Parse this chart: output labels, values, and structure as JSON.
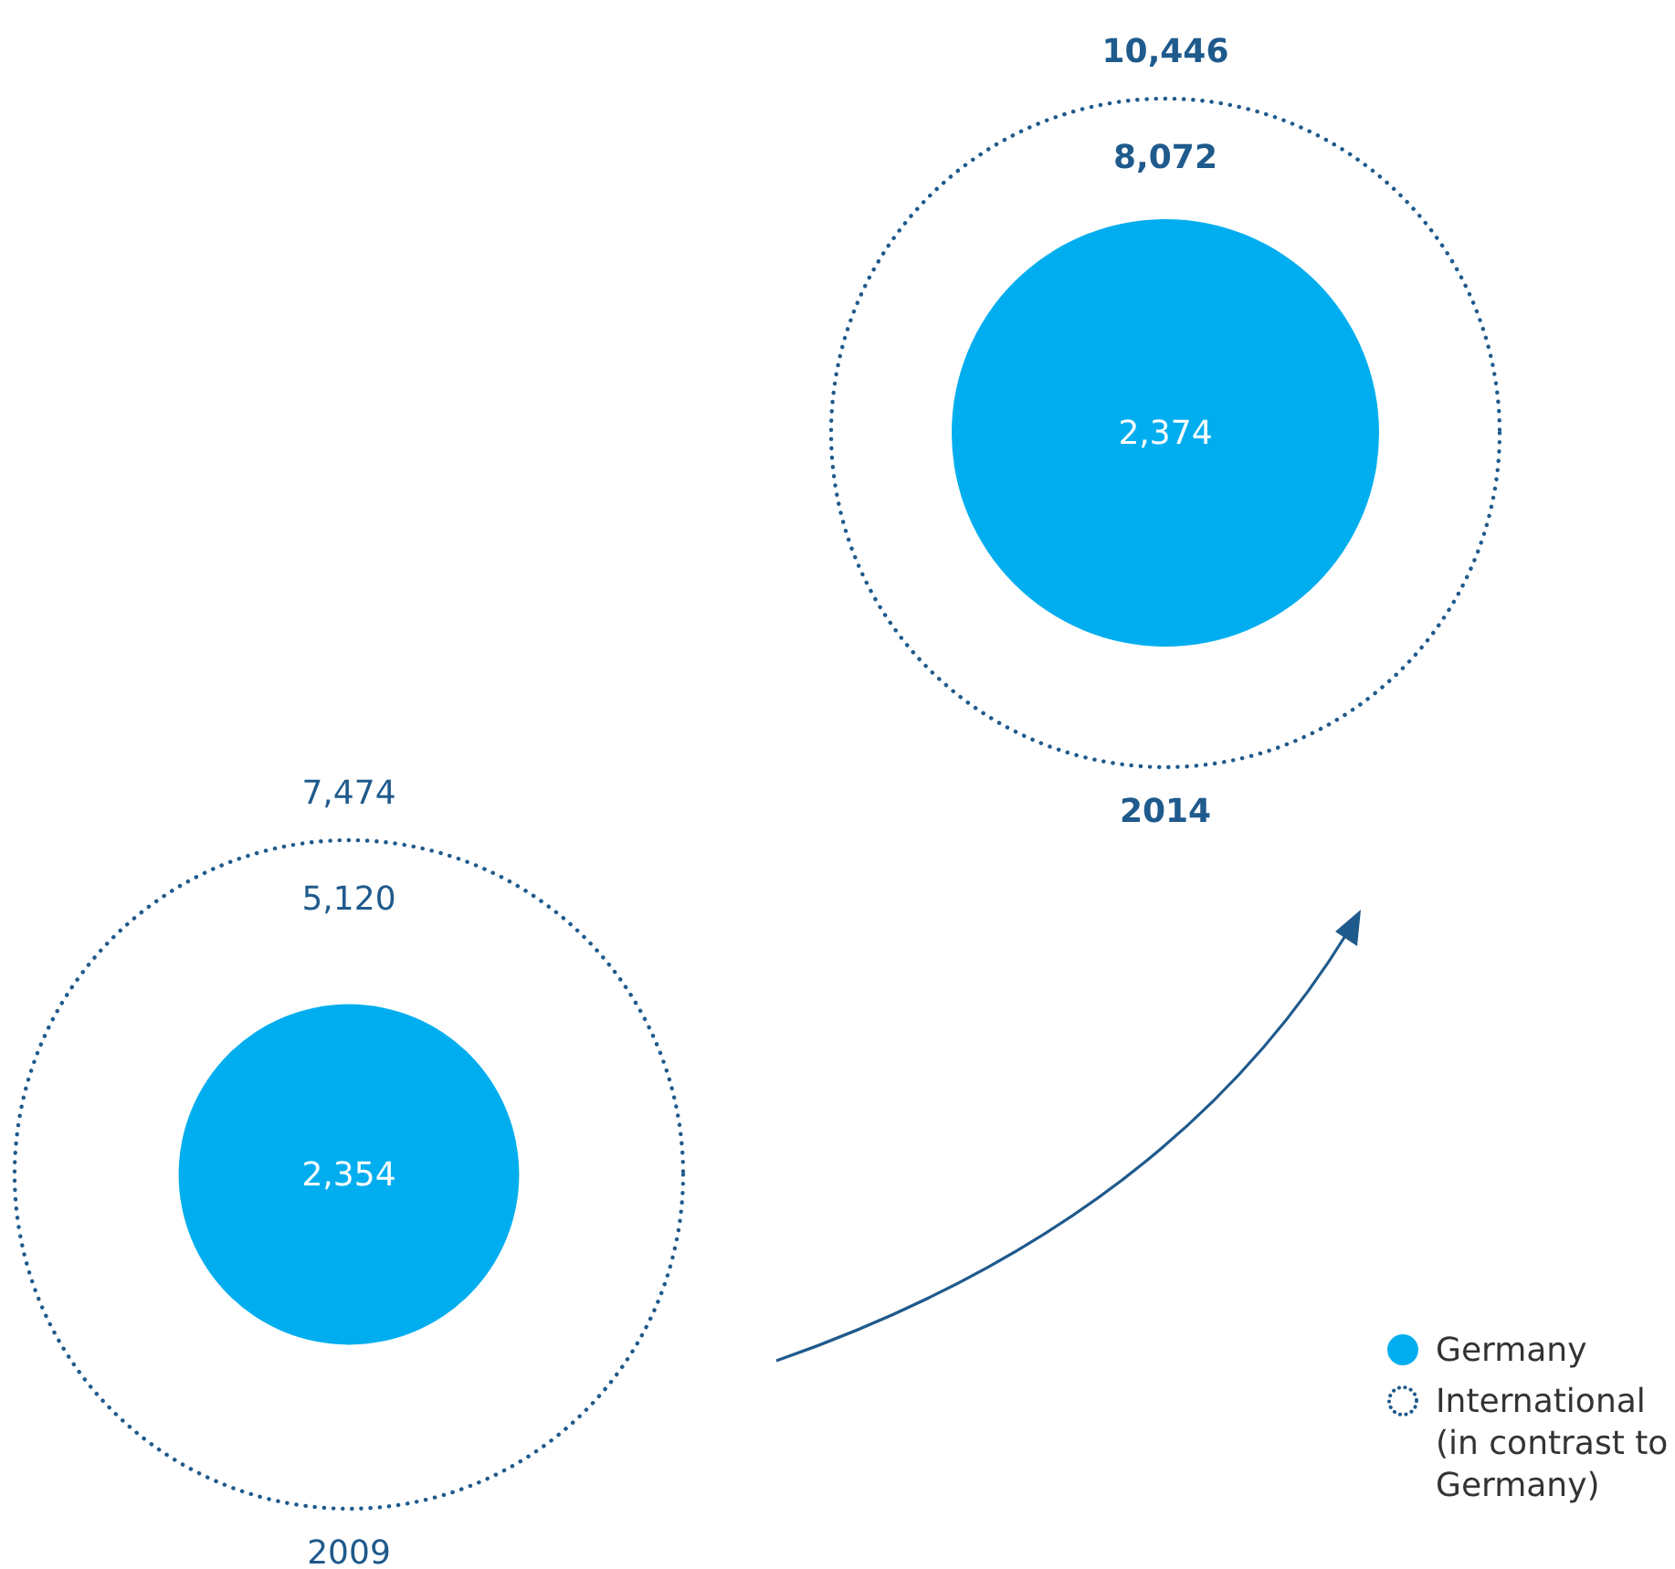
{
  "chart_data": {
    "type": "other",
    "categories": [
      "2009",
      "2014"
    ],
    "series": [
      {
        "name": "Germany",
        "color": "#00aeef",
        "values": [
          2354,
          2374
        ],
        "value_labels": [
          "2,354",
          "2,374"
        ]
      },
      {
        "name": "International (in contrast to Germany)",
        "color": "#1f5a8c",
        "values": [
          5120,
          8072
        ],
        "value_labels": [
          "5,120",
          "8,072"
        ],
        "line_style": "dotted"
      }
    ],
    "totals": [
      "7,474",
      "10,446"
    ],
    "legend": "bottom right"
  }
}
